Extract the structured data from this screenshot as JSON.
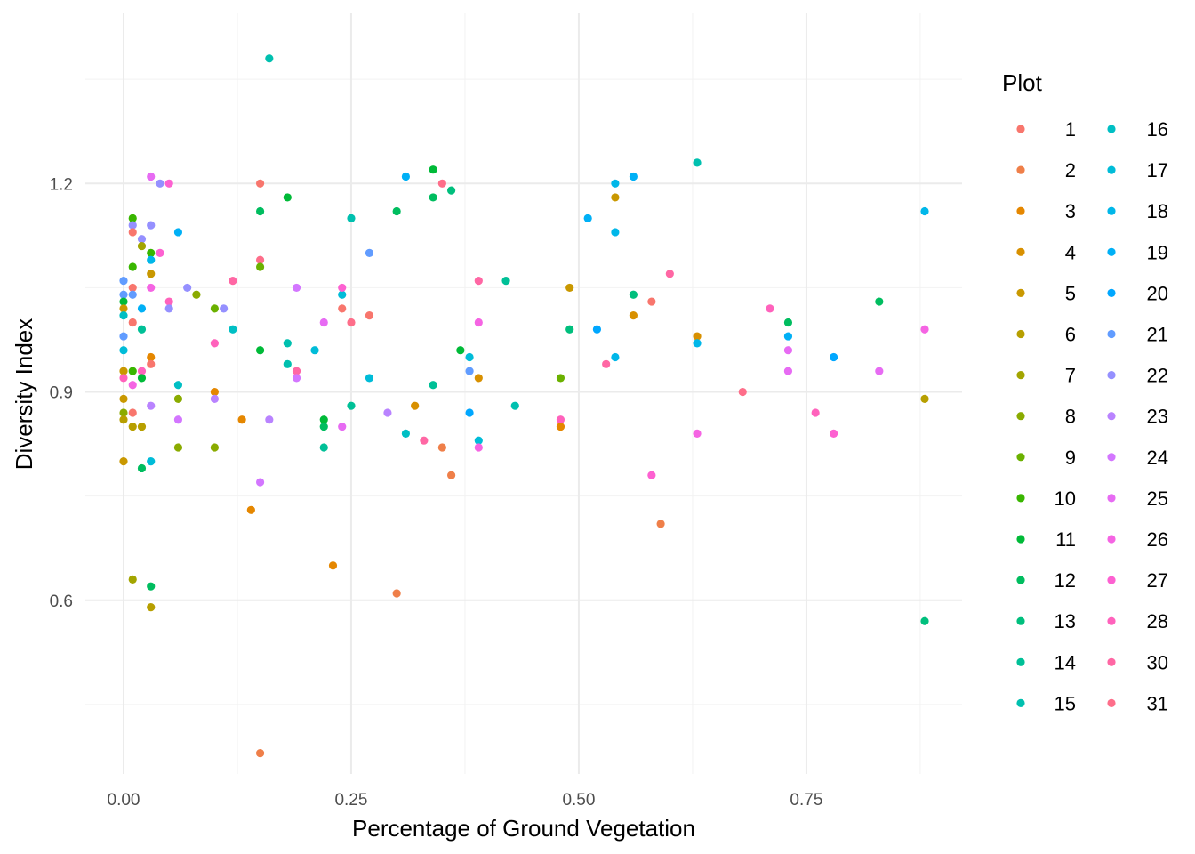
{
  "chart_data": {
    "type": "scatter",
    "title": "",
    "xlabel": "Percentage of Ground Vegetation",
    "ylabel": "Diversity Index",
    "xlim": [
      -0.042,
      0.921
    ],
    "ylim": [
      0.35,
      1.445
    ],
    "x_ticks": [
      0,
      0.25,
      0.5,
      0.75
    ],
    "x_tick_labels": [
      "0.00",
      "0.25",
      "0.50",
      "0.75"
    ],
    "y_ticks": [
      0.6,
      0.9,
      1.2
    ],
    "y_tick_labels": [
      "0.6",
      "0.9",
      "1.2"
    ],
    "grid": true,
    "legend": {
      "title": "Plot",
      "placement": "right",
      "levels": [
        "1",
        "2",
        "3",
        "4",
        "5",
        "6",
        "7",
        "8",
        "9",
        "10",
        "11",
        "12",
        "13",
        "14",
        "15",
        "16",
        "17",
        "18",
        "19",
        "20",
        "21",
        "22",
        "23",
        "24",
        "25",
        "26",
        "27",
        "28",
        "30",
        "31"
      ]
    },
    "point_fields": [
      "x",
      "y",
      "plot"
    ],
    "points": [
      [
        0.03,
        1.21,
        "25"
      ],
      [
        0.04,
        1.2,
        "22"
      ],
      [
        0.05,
        1.2,
        "27"
      ],
      [
        0.01,
        1.15,
        "10"
      ],
      [
        0.01,
        1.14,
        "22"
      ],
      [
        0.03,
        1.14,
        "22"
      ],
      [
        0.01,
        1.13,
        "1"
      ],
      [
        0.06,
        1.13,
        "19"
      ],
      [
        0.02,
        1.12,
        "22"
      ],
      [
        0.02,
        1.11,
        "7"
      ],
      [
        0.03,
        1.1,
        "10"
      ],
      [
        0.04,
        1.1,
        "27"
      ],
      [
        0.03,
        1.09,
        "18"
      ],
      [
        0.01,
        1.08,
        "10"
      ],
      [
        0.03,
        1.07,
        "5"
      ],
      [
        0.0,
        1.06,
        "21"
      ],
      [
        0.01,
        1.05,
        "1"
      ],
      [
        0.03,
        1.05,
        "26"
      ],
      [
        0.07,
        1.05,
        "22"
      ],
      [
        0.08,
        1.04,
        "8"
      ],
      [
        0.0,
        1.04,
        "21"
      ],
      [
        0.01,
        1.04,
        "21"
      ],
      [
        0.05,
        1.03,
        "28"
      ],
      [
        0.0,
        1.03,
        "11"
      ],
      [
        0.0,
        1.02,
        "5"
      ],
      [
        0.02,
        1.02,
        "19"
      ],
      [
        0.05,
        1.02,
        "22"
      ],
      [
        0.1,
        1.02,
        "9"
      ],
      [
        0.11,
        1.02,
        "22"
      ],
      [
        0.0,
        1.01,
        "16"
      ],
      [
        0.01,
        1.0,
        "1"
      ],
      [
        0.02,
        0.99,
        "14"
      ],
      [
        0.0,
        0.98,
        "21"
      ],
      [
        0.0,
        0.96,
        "17"
      ],
      [
        0.03,
        0.95,
        "3"
      ],
      [
        0.03,
        0.94,
        "1"
      ],
      [
        0.0,
        0.93,
        "5"
      ],
      [
        0.01,
        0.93,
        "10"
      ],
      [
        0.02,
        0.93,
        "28"
      ],
      [
        0.0,
        0.92,
        "28"
      ],
      [
        0.02,
        0.92,
        "11"
      ],
      [
        0.01,
        0.91,
        "26"
      ],
      [
        0.06,
        0.91,
        "16"
      ],
      [
        0.1,
        0.9,
        "3"
      ],
      [
        0.0,
        0.89,
        "5"
      ],
      [
        0.06,
        0.89,
        "8"
      ],
      [
        0.1,
        0.89,
        "23"
      ],
      [
        0.03,
        0.88,
        "23"
      ],
      [
        0.0,
        0.87,
        "8"
      ],
      [
        0.01,
        0.87,
        "1"
      ],
      [
        0.0,
        0.86,
        "6"
      ],
      [
        0.06,
        0.86,
        "24"
      ],
      [
        0.01,
        0.85,
        "6"
      ],
      [
        0.02,
        0.85,
        "6"
      ],
      [
        0.06,
        0.82,
        "8"
      ],
      [
        0.1,
        0.82,
        "8"
      ],
      [
        0.0,
        0.8,
        "5"
      ],
      [
        0.03,
        0.8,
        "17"
      ],
      [
        0.02,
        0.79,
        "12"
      ],
      [
        0.01,
        0.63,
        "7"
      ],
      [
        0.03,
        0.62,
        "12"
      ],
      [
        0.03,
        0.59,
        "6"
      ],
      [
        0.14,
        0.73,
        "3"
      ],
      [
        0.15,
        0.38,
        "2"
      ],
      [
        0.23,
        0.65,
        "3"
      ],
      [
        0.3,
        0.61,
        "2"
      ],
      [
        0.16,
        1.38,
        "15"
      ],
      [
        0.15,
        1.2,
        "1"
      ],
      [
        0.15,
        1.16,
        "12"
      ],
      [
        0.18,
        1.18,
        "11"
      ],
      [
        0.12,
        1.06,
        "30"
      ],
      [
        0.15,
        1.09,
        "31"
      ],
      [
        0.15,
        1.08,
        "9"
      ],
      [
        0.12,
        0.99,
        "16"
      ],
      [
        0.1,
        0.97,
        "28"
      ],
      [
        0.13,
        0.86,
        "3"
      ],
      [
        0.15,
        0.96,
        "11"
      ],
      [
        0.16,
        0.86,
        "23"
      ],
      [
        0.15,
        0.77,
        "24"
      ],
      [
        0.18,
        0.97,
        "15"
      ],
      [
        0.18,
        0.94,
        "15"
      ],
      [
        0.19,
        1.05,
        "24"
      ],
      [
        0.19,
        0.93,
        "30"
      ],
      [
        0.19,
        0.92,
        "24"
      ],
      [
        0.21,
        0.96,
        "17"
      ],
      [
        0.22,
        1.0,
        "25"
      ],
      [
        0.22,
        0.86,
        "11"
      ],
      [
        0.22,
        0.85,
        "12"
      ],
      [
        0.22,
        0.82,
        "14"
      ],
      [
        0.24,
        1.04,
        "17"
      ],
      [
        0.24,
        1.05,
        "27"
      ],
      [
        0.24,
        1.02,
        "1"
      ],
      [
        0.24,
        0.85,
        "25"
      ],
      [
        0.25,
        1.0,
        "31"
      ],
      [
        0.25,
        0.88,
        "14"
      ],
      [
        0.25,
        1.15,
        "15"
      ],
      [
        0.27,
        1.01,
        "1"
      ],
      [
        0.27,
        1.1,
        "21"
      ],
      [
        0.27,
        0.92,
        "17"
      ],
      [
        0.29,
        0.87,
        "23"
      ],
      [
        0.3,
        1.16,
        "12"
      ],
      [
        0.31,
        1.21,
        "19"
      ],
      [
        0.31,
        0.84,
        "16"
      ],
      [
        0.32,
        0.88,
        "4"
      ],
      [
        0.33,
        0.83,
        "30"
      ],
      [
        0.34,
        1.22,
        "11"
      ],
      [
        0.34,
        1.18,
        "12"
      ],
      [
        0.34,
        0.91,
        "14"
      ],
      [
        0.35,
        1.2,
        "31"
      ],
      [
        0.35,
        0.82,
        "2"
      ],
      [
        0.36,
        1.19,
        "13"
      ],
      [
        0.36,
        0.78,
        "2"
      ],
      [
        0.37,
        0.96,
        "11"
      ],
      [
        0.38,
        0.95,
        "17"
      ],
      [
        0.38,
        0.93,
        "21"
      ],
      [
        0.38,
        0.87,
        "20"
      ],
      [
        0.39,
        1.06,
        "30"
      ],
      [
        0.39,
        1.0,
        "26"
      ],
      [
        0.39,
        0.92,
        "4"
      ],
      [
        0.39,
        0.83,
        "17"
      ],
      [
        0.39,
        0.82,
        "26"
      ],
      [
        0.42,
        1.06,
        "14"
      ],
      [
        0.43,
        0.88,
        "15"
      ],
      [
        0.48,
        0.92,
        "9"
      ],
      [
        0.48,
        0.86,
        "28"
      ],
      [
        0.48,
        0.85,
        "3"
      ],
      [
        0.49,
        1.05,
        "5"
      ],
      [
        0.49,
        0.99,
        "13"
      ],
      [
        0.51,
        1.15,
        "19"
      ],
      [
        0.52,
        0.99,
        "20"
      ],
      [
        0.53,
        0.94,
        "30"
      ],
      [
        0.54,
        1.18,
        "5"
      ],
      [
        0.54,
        1.2,
        "18"
      ],
      [
        0.54,
        1.13,
        "18"
      ],
      [
        0.54,
        0.95,
        "18"
      ],
      [
        0.56,
        1.21,
        "19"
      ],
      [
        0.56,
        1.04,
        "13"
      ],
      [
        0.56,
        1.01,
        "4"
      ],
      [
        0.58,
        1.03,
        "1"
      ],
      [
        0.58,
        0.78,
        "27"
      ],
      [
        0.59,
        0.71,
        "2"
      ],
      [
        0.6,
        1.07,
        "30"
      ],
      [
        0.63,
        1.23,
        "15"
      ],
      [
        0.63,
        0.98,
        "4"
      ],
      [
        0.63,
        0.97,
        "18"
      ],
      [
        0.63,
        0.84,
        "26"
      ],
      [
        0.68,
        0.9,
        "31"
      ],
      [
        0.71,
        1.02,
        "28"
      ],
      [
        0.73,
        1.0,
        "12"
      ],
      [
        0.73,
        0.98,
        "19"
      ],
      [
        0.73,
        0.96,
        "25"
      ],
      [
        0.73,
        0.93,
        "25"
      ],
      [
        0.76,
        0.87,
        "28"
      ],
      [
        0.78,
        0.95,
        "20"
      ],
      [
        0.78,
        0.84,
        "27"
      ],
      [
        0.83,
        1.03,
        "12"
      ],
      [
        0.83,
        0.93,
        "25"
      ],
      [
        0.88,
        1.16,
        "18"
      ],
      [
        0.88,
        0.99,
        "26"
      ],
      [
        0.88,
        0.89,
        "6"
      ],
      [
        0.88,
        0.57,
        "13"
      ]
    ]
  }
}
